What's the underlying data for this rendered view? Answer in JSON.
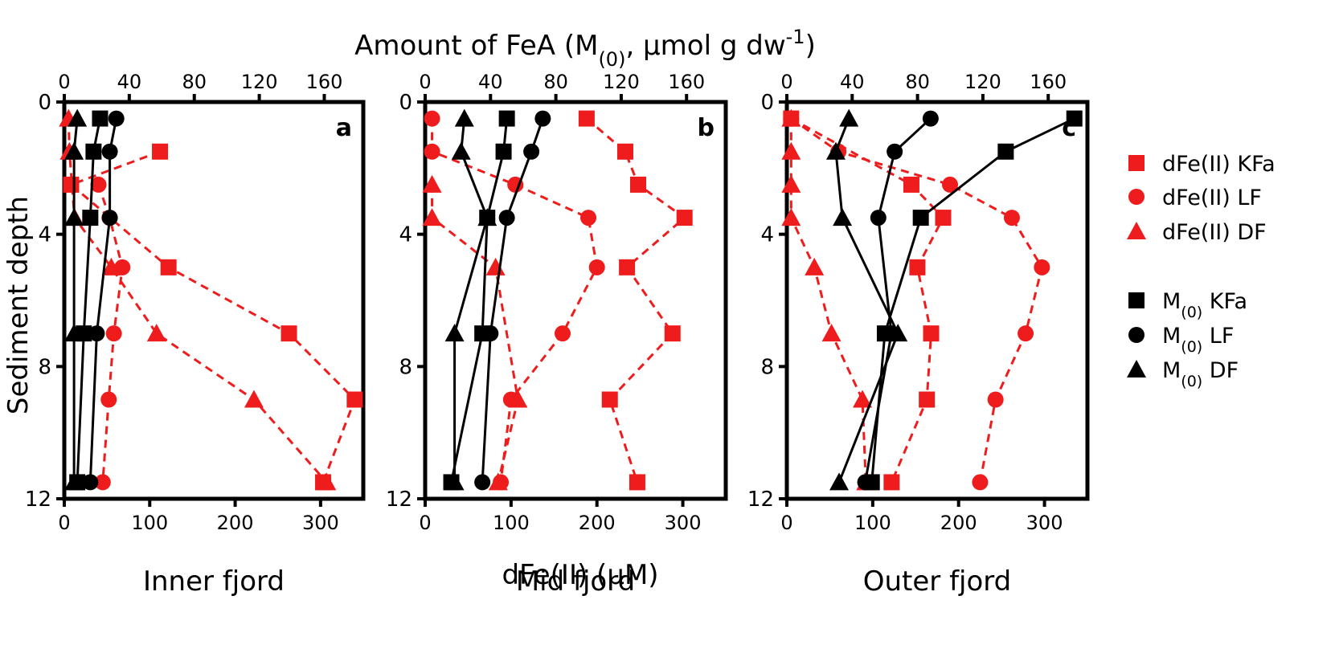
{
  "figure": {
    "top_axis_label": "Amount of FeA (M(0), μmol g dw⁻¹)",
    "top_axis_label_parts": [
      "Amount of FeA (M",
      "(0)",
      ", μmol g dw",
      "-1",
      ")"
    ],
    "bottom_axis_label": "dFe(II) (μM)",
    "y_axis_label": "Sediment depth"
  },
  "legend": {
    "items": [
      {
        "label": "dFe(II) KFa",
        "marker": "square",
        "color": "#ee1c1c"
      },
      {
        "label": "dFe(II) LF",
        "marker": "circle",
        "color": "#ee1c1c"
      },
      {
        "label": "dFe(II) DF",
        "marker": "triangle",
        "color": "#ee1c1c"
      },
      {
        "label": "M(0) KFa",
        "prefix": "M",
        "sub": "(0)",
        "suffix": " KFa",
        "marker": "square",
        "color": "#000000"
      },
      {
        "label": "M(0) LF",
        "prefix": "M",
        "sub": "(0)",
        "suffix": " LF",
        "marker": "circle",
        "color": "#000000"
      },
      {
        "label": "M(0) DF",
        "prefix": "M",
        "sub": "(0)",
        "suffix": " DF",
        "marker": "triangle",
        "color": "#000000"
      }
    ]
  },
  "colors": {
    "dfe": "#ee1c1c",
    "m0": "#000000",
    "axis": "#000000"
  },
  "chart_data": [
    {
      "type": "line",
      "panel_letter": "a",
      "caption": "Inner fjord",
      "x_bottom": {
        "label": "dFe(II) (μM)",
        "lim": [
          0,
          350
        ],
        "ticks": [
          0,
          100,
          200,
          300
        ]
      },
      "x_top": {
        "label": "Amount of FeA (M(0), μmol g dw⁻¹)",
        "lim": [
          0,
          184
        ],
        "ticks": [
          0,
          40,
          80,
          120,
          160
        ]
      },
      "y": {
        "label": "Sediment depth",
        "lim": [
          0,
          12
        ],
        "ticks": [
          0,
          4,
          8,
          12
        ],
        "inverted": true
      },
      "series": [
        {
          "name": "dFe(II) KFa",
          "axis": "bottom",
          "marker": "square",
          "style": "dashed",
          "color": "#ee1c1c",
          "depth": [
            1.5,
            2.5,
            5,
            7,
            9,
            11.5
          ],
          "values": [
            112,
            8,
            122,
            263,
            340,
            303
          ]
        },
        {
          "name": "dFe(II) LF",
          "axis": "bottom",
          "marker": "circle",
          "style": "dashed",
          "color": "#ee1c1c",
          "depth": [
            2.5,
            3.5,
            5,
            7,
            9,
            11.5
          ],
          "values": [
            40,
            53,
            68,
            58,
            52,
            45
          ]
        },
        {
          "name": "dFe(II) DF",
          "axis": "bottom",
          "marker": "triangle",
          "style": "dashed",
          "color": "#ee1c1c",
          "depth": [
            0.5,
            1.5,
            3.5,
            5,
            7,
            9,
            11.5
          ],
          "values": [
            5,
            6,
            12,
            55,
            108,
            222,
            307
          ]
        },
        {
          "name": "M(0) KFa",
          "axis": "top",
          "marker": "square",
          "style": "solid",
          "color": "#000000",
          "depth": [
            0.5,
            1.5,
            3.5,
            7,
            11.5
          ],
          "values": [
            22,
            18,
            16,
            12,
            8
          ]
        },
        {
          "name": "M(0) LF",
          "axis": "top",
          "marker": "circle",
          "style": "solid",
          "color": "#000000",
          "depth": [
            0.5,
            1.5,
            3.5,
            7,
            11.5
          ],
          "values": [
            32,
            28,
            28,
            20,
            16
          ]
        },
        {
          "name": "M(0) DF",
          "axis": "top",
          "marker": "triangle",
          "style": "solid",
          "color": "#000000",
          "depth": [
            0.5,
            1.5,
            3.5,
            7,
            11.5
          ],
          "values": [
            8,
            6,
            6,
            6,
            6
          ]
        }
      ]
    },
    {
      "type": "line",
      "panel_letter": "b",
      "caption": "Mid fjord",
      "x_bottom": {
        "label": "dFe(II) (μM)",
        "lim": [
          0,
          350
        ],
        "ticks": [
          0,
          100,
          200,
          300
        ]
      },
      "x_top": {
        "label": "Amount of FeA (M(0), μmol g dw⁻¹)",
        "lim": [
          0,
          184
        ],
        "ticks": [
          0,
          40,
          80,
          120,
          160
        ]
      },
      "y": {
        "label": "Sediment depth",
        "lim": [
          0,
          12
        ],
        "ticks": [
          0,
          4,
          8,
          12
        ],
        "inverted": true
      },
      "series": [
        {
          "name": "dFe(II) KFa",
          "axis": "bottom",
          "marker": "square",
          "style": "dashed",
          "color": "#ee1c1c",
          "depth": [
            0.5,
            1.5,
            2.5,
            3.5,
            5,
            7,
            9,
            11.5
          ],
          "values": [
            188,
            233,
            248,
            302,
            235,
            288,
            215,
            247
          ]
        },
        {
          "name": "dFe(II) LF",
          "axis": "bottom",
          "marker": "circle",
          "style": "dashed",
          "color": "#ee1c1c",
          "depth": [
            0.5,
            1.5,
            2.5,
            3.5,
            5,
            7,
            9,
            11.5
          ],
          "values": [
            8,
            8,
            105,
            190,
            200,
            160,
            100,
            88
          ]
        },
        {
          "name": "dFe(II) DF",
          "axis": "bottom",
          "marker": "triangle",
          "style": "dashed",
          "color": "#ee1c1c",
          "depth": [
            2.5,
            3.5,
            5,
            9,
            11.5
          ],
          "values": [
            8,
            8,
            82,
            108,
            85
          ]
        },
        {
          "name": "M(0) KFa",
          "axis": "top",
          "marker": "square",
          "style": "solid",
          "color": "#000000",
          "depth": [
            0.5,
            1.5,
            3.5,
            7,
            11.5
          ],
          "values": [
            50,
            48,
            38,
            35,
            16
          ]
        },
        {
          "name": "M(0) LF",
          "axis": "top",
          "marker": "circle",
          "style": "solid",
          "color": "#000000",
          "depth": [
            0.5,
            1.5,
            3.5,
            7,
            11.5
          ],
          "values": [
            72,
            65,
            50,
            40,
            35
          ]
        },
        {
          "name": "M(0) DF",
          "axis": "top",
          "marker": "triangle",
          "style": "solid",
          "color": "#000000",
          "depth": [
            0.5,
            1.5,
            3.5,
            7,
            11.5
          ],
          "values": [
            24,
            22,
            38,
            18,
            18
          ]
        }
      ]
    },
    {
      "type": "line",
      "panel_letter": "c",
      "caption": "Outer fjord",
      "x_bottom": {
        "label": "dFe(II) (μM)",
        "lim": [
          0,
          350
        ],
        "ticks": [
          0,
          100,
          200,
          300
        ]
      },
      "x_top": {
        "label": "Amount of FeA (M(0), μmol g dw⁻¹)",
        "lim": [
          0,
          184
        ],
        "ticks": [
          0,
          40,
          80,
          120,
          160
        ]
      },
      "y": {
        "label": "Sediment depth",
        "lim": [
          0,
          12
        ],
        "ticks": [
          0,
          4,
          8,
          12
        ],
        "inverted": true
      },
      "series": [
        {
          "name": "dFe(II) KFa",
          "axis": "bottom",
          "marker": "square",
          "style": "dashed",
          "color": "#ee1c1c",
          "depth": [
            0.5,
            2.5,
            3.5,
            5,
            7,
            9,
            11.5
          ],
          "values": [
            5,
            145,
            182,
            152,
            168,
            163,
            122
          ]
        },
        {
          "name": "dFe(II) LF",
          "axis": "bottom",
          "marker": "circle",
          "style": "dashed",
          "color": "#ee1c1c",
          "depth": [
            0.5,
            1.5,
            2.5,
            3.5,
            5,
            7,
            9,
            11.5
          ],
          "values": [
            5,
            60,
            190,
            262,
            297,
            278,
            243,
            225
          ]
        },
        {
          "name": "dFe(II) DF",
          "axis": "bottom",
          "marker": "triangle",
          "style": "dashed",
          "color": "#ee1c1c",
          "depth": [
            0.5,
            1.5,
            2.5,
            3.5,
            5,
            7,
            9,
            11.5
          ],
          "values": [
            5,
            5,
            5,
            5,
            32,
            52,
            88,
            92
          ]
        },
        {
          "name": "M(0) KFa",
          "axis": "top",
          "marker": "square",
          "style": "solid",
          "color": "#000000",
          "depth": [
            0.5,
            1.5,
            3.5,
            7,
            11.5
          ],
          "values": [
            176,
            134,
            82,
            60,
            52
          ]
        },
        {
          "name": "M(0) LF",
          "axis": "top",
          "marker": "circle",
          "style": "solid",
          "color": "#000000",
          "depth": [
            0.5,
            1.5,
            3.5,
            7,
            11.5
          ],
          "values": [
            88,
            66,
            56,
            64,
            48
          ]
        },
        {
          "name": "M(0) DF",
          "axis": "top",
          "marker": "triangle",
          "style": "solid",
          "color": "#000000",
          "depth": [
            0.5,
            1.5,
            3.5,
            7,
            11.5
          ],
          "values": [
            38,
            30,
            34,
            68,
            32
          ]
        }
      ]
    }
  ]
}
